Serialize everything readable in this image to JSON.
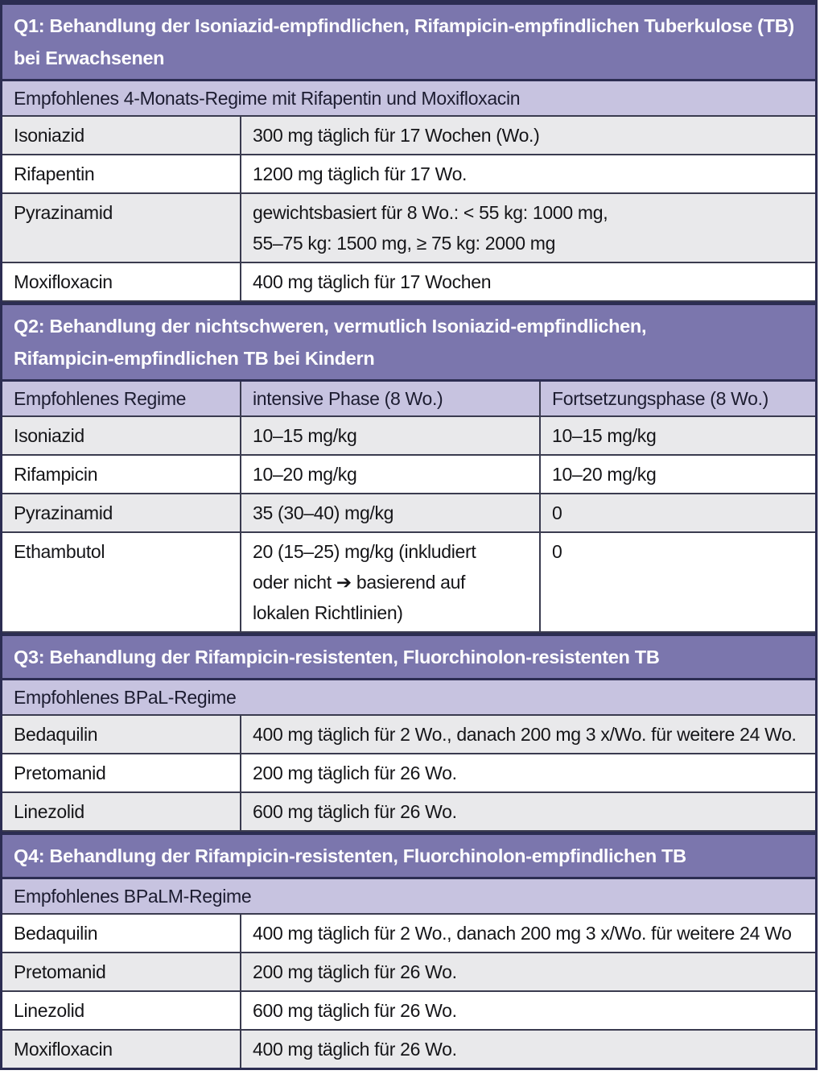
{
  "colors": {
    "header_bg": "#7b76ad",
    "subheader_bg": "#c7c3e0",
    "row_shaded_bg": "#e9e9eb",
    "row_plain_bg": "#ffffff",
    "frame_border": "#2c2d52",
    "header_text": "#ffffff",
    "body_text": "#151518"
  },
  "sections": [
    {
      "header": "Q1: Behandlung der Isoniazid-empfindlichen, Rifampicin-empfindlichen Tuberkulose (TB)\nbei Erwachsenen",
      "subheader": "Empfohlenes 4-Monats-Regime mit Rifapentin und Moxifloxacin",
      "rows": [
        [
          "Isoniazid",
          "300 mg täglich für 17 Wochen (Wo.)"
        ],
        [
          "Rifapentin",
          "1200 mg täglich für 17 Wo."
        ],
        [
          "Pyrazinamid",
          "gewichtsbasiert für 8 Wo.: < 55 kg: 1000 mg,\n55–75 kg: 1500 mg, ≥ 75 kg: 2000 mg"
        ],
        [
          "Moxifloxacin",
          "400 mg täglich für 17 Wochen"
        ]
      ]
    },
    {
      "header": "Q2: Behandlung der nichtschweren, vermutlich Isoniazid-empfindlichen,\nRifampicin-empfindlichen TB bei Kindern",
      "columns": [
        "Empfohlenes Regime",
        "intensive Phase (8 Wo.)",
        "Fortsetzungsphase (8 Wo.)"
      ],
      "rows": [
        [
          "Isoniazid",
          "10–15 mg/kg",
          "10–15 mg/kg"
        ],
        [
          "Rifampicin",
          "10–20 mg/kg",
          "10–20 mg/kg"
        ],
        [
          "Pyrazinamid",
          "35 (30–40) mg/kg",
          "0"
        ],
        [
          "Ethambutol",
          "20 (15–25) mg/kg (inkludiert\noder nicht ➔ basierend auf\nlokalen Richtlinien)",
          "0"
        ]
      ]
    },
    {
      "header": "Q3: Behandlung der Rifampicin-resistenten, Fluorchinolon-resistenten TB",
      "subheader": "Empfohlenes BPaL-Regime",
      "rows": [
        [
          "Bedaquilin",
          "400 mg täglich für 2 Wo., danach 200 mg 3 x/Wo. für weitere 24 Wo."
        ],
        [
          "Pretomanid",
          "200 mg täglich für 26 Wo."
        ],
        [
          "Linezolid",
          "600 mg täglich für 26 Wo."
        ]
      ]
    },
    {
      "header": "Q4: Behandlung der Rifampicin-resistenten, Fluorchinolon-empfindlichen TB",
      "subheader": "Empfohlenes BPaLM-Regime",
      "rows": [
        [
          "Bedaquilin",
          "400 mg täglich für 2 Wo., danach 200 mg 3 x/Wo. für weitere 24 Wo"
        ],
        [
          "Pretomanid",
          "200 mg täglich für 26 Wo."
        ],
        [
          "Linezolid",
          "600 mg täglich für 26 Wo."
        ],
        [
          "Moxifloxacin",
          "400 mg täglich für 26 Wo."
        ]
      ]
    }
  ]
}
